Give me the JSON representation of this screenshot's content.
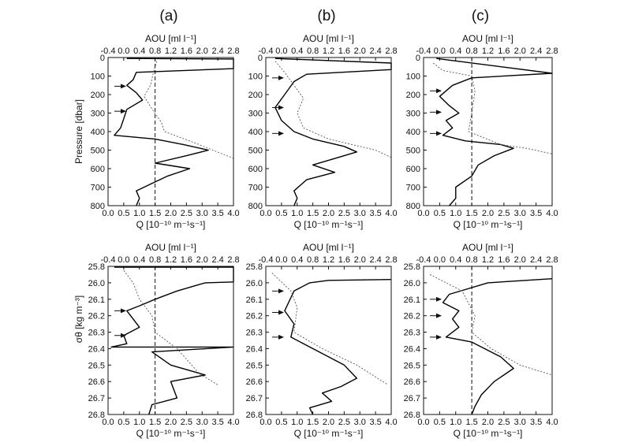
{
  "panel_labels": [
    "(a)",
    "(b)",
    "(c)"
  ],
  "axis_text": {
    "top_label": "AOU [ml l⁻¹]",
    "bottom_label": "Q [10⁻¹⁰ m⁻¹s⁻¹]",
    "y_label_top_row": "Pressure [dbar]",
    "y_label_bottom_row": "σθ [kg m⁻³]"
  },
  "chart_data": [
    {
      "type": "line",
      "panel": "(a)",
      "row": "pressure",
      "xlabel": "Q [10⁻¹⁰ m⁻¹s⁻¹]",
      "x2label": "AOU [ml l⁻¹]",
      "ylabel": "Pressure [dbar]",
      "xlim": [
        0,
        4
      ],
      "x2lim": [
        -0.4,
        2.8
      ],
      "ylim": [
        800,
        0
      ],
      "xticks": [
        "0.0",
        "0.5",
        "1.0",
        "1.5",
        "2.0",
        "2.5",
        "3.0",
        "3.5",
        "4.0"
      ],
      "x2ticks": [
        "-0.4",
        "0.0",
        "0.4",
        "0.8",
        "1.2",
        "1.6",
        "2.0",
        "2.4",
        "2.8"
      ],
      "yticks": [
        "0",
        "100",
        "200",
        "300",
        "400",
        "500",
        "600",
        "700",
        "800"
      ],
      "reference_line_Q": 1.5,
      "arrows_y": [
        155,
        290
      ],
      "series": [
        {
          "style": "solid",
          "points": [
            [
              0.6,
              5
            ],
            [
              4.0,
              8
            ],
            [
              4.0,
              60
            ],
            [
              0.9,
              80
            ],
            [
              0.8,
              120
            ],
            [
              0.6,
              150
            ],
            [
              0.9,
              190
            ],
            [
              1.1,
              230
            ],
            [
              0.6,
              280
            ],
            [
              0.5,
              330
            ],
            [
              0.4,
              380
            ],
            [
              0.2,
              420
            ],
            [
              1.5,
              440
            ],
            [
              2.4,
              470
            ],
            [
              3.2,
              500
            ],
            [
              2.5,
              530
            ],
            [
              1.5,
              570
            ],
            [
              2.6,
              600
            ],
            [
              1.9,
              640
            ],
            [
              1.4,
              680
            ],
            [
              0.9,
              720
            ],
            [
              1.0,
              760
            ],
            [
              0.9,
              800
            ]
          ]
        },
        {
          "style": "dotted",
          "points": [
            [
              1.55,
              20
            ],
            [
              1.45,
              80
            ],
            [
              1.35,
              150
            ],
            [
              1.15,
              210
            ],
            [
              1.45,
              290
            ],
            [
              1.7,
              350
            ],
            [
              1.8,
              400
            ],
            [
              2.9,
              470
            ],
            [
              4.0,
              545
            ]
          ]
        }
      ]
    },
    {
      "type": "line",
      "panel": "(b)",
      "row": "pressure",
      "xlabel": "Q [10⁻¹⁰ m⁻¹s⁻¹]",
      "x2label": "AOU [ml l⁻¹]",
      "ylabel": "",
      "xlim": [
        0,
        4
      ],
      "x2lim": [
        -0.4,
        2.8
      ],
      "ylim": [
        800,
        0
      ],
      "xticks": [
        "0.0",
        "0.5",
        "1.0",
        "1.5",
        "2.0",
        "2.5",
        "3.0",
        "3.5",
        "4.0"
      ],
      "x2ticks": [
        "-0.4",
        "0.0",
        "0.4",
        "0.8",
        "1.2",
        "1.6",
        "2.0",
        "2.4",
        "2.8"
      ],
      "yticks": [
        "0",
        "100",
        "200",
        "300",
        "400",
        "500",
        "600",
        "700",
        "800"
      ],
      "reference_line_Q": null,
      "arrows_y": [
        110,
        270,
        410
      ],
      "series": [
        {
          "style": "solid",
          "points": [
            [
              0.3,
              5
            ],
            [
              4.0,
              30
            ],
            [
              4.0,
              65
            ],
            [
              1.3,
              90
            ],
            [
              0.9,
              130
            ],
            [
              0.6,
              200
            ],
            [
              0.3,
              270
            ],
            [
              0.5,
              340
            ],
            [
              0.9,
              400
            ],
            [
              1.5,
              440
            ],
            [
              2.5,
              480
            ],
            [
              2.9,
              510
            ],
            [
              2.3,
              540
            ],
            [
              1.5,
              580
            ],
            [
              2.2,
              620
            ],
            [
              1.3,
              660
            ],
            [
              0.9,
              720
            ],
            [
              1.0,
              760
            ],
            [
              0.9,
              800
            ]
          ]
        },
        {
          "style": "dotted",
          "points": [
            [
              0.3,
              20
            ],
            [
              0.6,
              80
            ],
            [
              0.9,
              150
            ],
            [
              1.2,
              220
            ],
            [
              1.0,
              300
            ],
            [
              1.2,
              380
            ],
            [
              2.0,
              440
            ],
            [
              3.5,
              500
            ],
            [
              4.0,
              540
            ]
          ]
        }
      ]
    },
    {
      "type": "line",
      "panel": "(c)",
      "row": "pressure",
      "xlabel": "Q [10⁻¹⁰ m⁻¹s⁻¹]",
      "x2label": "AOU [ml l⁻¹]",
      "ylabel": "",
      "xlim": [
        0,
        4
      ],
      "x2lim": [
        -0.4,
        2.8
      ],
      "ylim": [
        800,
        0
      ],
      "xticks": [
        "0.0",
        "0.5",
        "1.0",
        "1.5",
        "2.0",
        "2.5",
        "3.0",
        "3.5",
        "4.0"
      ],
      "x2ticks": [
        "-0.4",
        "0.0",
        "0.4",
        "0.8",
        "1.2",
        "1.6",
        "2.0",
        "2.4",
        "2.8"
      ],
      "yticks": [
        "0",
        "100",
        "200",
        "300",
        "400",
        "500",
        "600",
        "700",
        "800"
      ],
      "reference_line_Q": 1.5,
      "arrows_y": [
        180,
        295,
        410
      ],
      "series": [
        {
          "style": "solid",
          "points": [
            [
              0.4,
              5
            ],
            [
              4.0,
              85
            ],
            [
              1.5,
              110
            ],
            [
              0.9,
              150
            ],
            [
              0.5,
              210
            ],
            [
              0.8,
              260
            ],
            [
              1.1,
              300
            ],
            [
              0.7,
              340
            ],
            [
              0.9,
              380
            ],
            [
              0.6,
              420
            ],
            [
              1.3,
              450
            ],
            [
              2.4,
              470
            ],
            [
              2.8,
              490
            ],
            [
              2.2,
              530
            ],
            [
              1.7,
              580
            ],
            [
              1.5,
              640
            ],
            [
              1.0,
              700
            ],
            [
              1.0,
              760
            ],
            [
              0.8,
              800
            ]
          ]
        },
        {
          "style": "dotted",
          "points": [
            [
              0.3,
              30
            ],
            [
              0.6,
              70
            ],
            [
              1.5,
              100
            ],
            [
              1.6,
              180
            ],
            [
              1.5,
              300
            ],
            [
              1.4,
              400
            ],
            [
              2.4,
              470
            ],
            [
              3.2,
              490
            ],
            [
              4.0,
              520
            ]
          ]
        }
      ]
    },
    {
      "type": "line",
      "panel": "(a)",
      "row": "density",
      "xlabel": "Q [10⁻¹⁰ m⁻¹s⁻¹]",
      "x2label": "AOU [ml l⁻¹]",
      "ylabel": "σθ [kg m⁻³]",
      "xlim": [
        0,
        4
      ],
      "x2lim": [
        -0.4,
        2.8
      ],
      "ylim": [
        26.8,
        25.8
      ],
      "xticks": [
        "0.0",
        "0.5",
        "1.0",
        "1.5",
        "2.0",
        "2.5",
        "3.0",
        "3.5",
        "4.0"
      ],
      "x2ticks": [
        "-0.4",
        "0.0",
        "0.4",
        "0.8",
        "1.2",
        "1.6",
        "2.0",
        "2.4",
        "2.8"
      ],
      "yticks": [
        "25.8",
        "26.0",
        "26.1",
        "26.2",
        "26.3",
        "26.4",
        "26.5",
        "26.6",
        "26.7",
        "26.8"
      ],
      "reference_line_Q": 1.5,
      "arrows_y": [
        26.17,
        26.32
      ],
      "series": [
        {
          "style": "solid",
          "points": [
            [
              0.2,
              25.81
            ],
            [
              4.0,
              25.81
            ],
            [
              4.0,
              25.99
            ],
            [
              3.1,
              26.0
            ],
            [
              2.2,
              26.05
            ],
            [
              1.5,
              26.1
            ],
            [
              1.0,
              26.14
            ],
            [
              0.6,
              26.17
            ],
            [
              0.8,
              26.22
            ],
            [
              1.0,
              26.27
            ],
            [
              0.5,
              26.32
            ],
            [
              0.6,
              26.37
            ],
            [
              0.1,
              26.39
            ],
            [
              4.0,
              26.39
            ],
            [
              1.4,
              26.42
            ],
            [
              2.0,
              26.5
            ],
            [
              3.1,
              26.56
            ],
            [
              2.0,
              26.6
            ],
            [
              2.2,
              26.7
            ],
            [
              1.4,
              26.74
            ],
            [
              1.3,
              26.8
            ]
          ]
        },
        {
          "style": "dotted",
          "points": [
            [
              0.5,
              25.85
            ],
            [
              0.8,
              26.0
            ],
            [
              1.0,
              26.1
            ],
            [
              1.4,
              26.2
            ],
            [
              1.5,
              26.3
            ],
            [
              2.2,
              26.4
            ],
            [
              2.9,
              26.55
            ],
            [
              3.5,
              26.62
            ]
          ]
        }
      ]
    },
    {
      "type": "line",
      "panel": "(b)",
      "row": "density",
      "xlabel": "Q [10⁻¹⁰ m⁻¹s⁻¹]",
      "x2label": "AOU [ml l⁻¹]",
      "ylabel": "",
      "xlim": [
        0,
        4
      ],
      "x2lim": [
        -0.4,
        2.8
      ],
      "ylim": [
        26.8,
        25.8
      ],
      "xticks": [
        "0.0",
        "0.5",
        "1.0",
        "1.5",
        "2.0",
        "2.5",
        "3.0",
        "3.5",
        "4.0"
      ],
      "x2ticks": [
        "-0.4",
        "0.0",
        "0.4",
        "0.8",
        "1.2",
        "1.6",
        "2.0",
        "2.4",
        "2.8"
      ],
      "yticks": [
        "25.8",
        "26.0",
        "26.1",
        "26.2",
        "26.3",
        "26.4",
        "26.5",
        "26.6",
        "26.7",
        "26.8"
      ],
      "reference_line_Q": null,
      "arrows_y": [
        26.05,
        26.18,
        26.33
      ],
      "series": [
        {
          "style": "solid",
          "points": [
            [
              4.0,
              25.96
            ],
            [
              2.0,
              25.97
            ],
            [
              1.4,
              26.0
            ],
            [
              0.9,
              26.05
            ],
            [
              0.6,
              26.17
            ],
            [
              0.9,
              26.25
            ],
            [
              0.8,
              26.33
            ],
            [
              1.5,
              26.4
            ],
            [
              2.5,
              26.5
            ],
            [
              2.9,
              26.58
            ],
            [
              2.4,
              26.63
            ],
            [
              1.8,
              26.67
            ],
            [
              2.1,
              26.72
            ],
            [
              1.4,
              26.76
            ],
            [
              1.5,
              26.8
            ]
          ]
        },
        {
          "style": "dotted",
          "points": [
            [
              0.2,
              25.88
            ],
            [
              0.8,
              26.05
            ],
            [
              1.0,
              26.15
            ],
            [
              0.9,
              26.3
            ],
            [
              1.8,
              26.4
            ],
            [
              2.9,
              26.5
            ],
            [
              3.9,
              26.62
            ]
          ]
        }
      ]
    },
    {
      "type": "line",
      "panel": "(c)",
      "row": "density",
      "xlabel": "Q [10⁻¹⁰ m⁻¹s⁻¹]",
      "x2label": "AOU [ml l⁻¹]",
      "ylabel": "",
      "xlim": [
        0,
        4
      ],
      "x2lim": [
        -0.4,
        2.8
      ],
      "ylim": [
        26.8,
        25.8
      ],
      "xticks": [
        "0.0",
        "0.5",
        "1.0",
        "1.5",
        "2.0",
        "2.5",
        "3.0",
        "3.5",
        "4.0"
      ],
      "x2ticks": [
        "-0.4",
        "0.0",
        "0.4",
        "0.8",
        "1.2",
        "1.6",
        "2.0",
        "2.4",
        "2.8"
      ],
      "yticks": [
        "25.8",
        "26.0",
        "26.1",
        "26.2",
        "26.3",
        "26.4",
        "26.5",
        "26.6",
        "26.7",
        "26.8"
      ],
      "reference_line_Q": 1.5,
      "arrows_y": [
        26.1,
        26.2,
        26.33
      ],
      "series": [
        {
          "style": "solid",
          "points": [
            [
              4.0,
              25.95
            ],
            [
              2.0,
              26.0
            ],
            [
              0.8,
              26.07
            ],
            [
              0.6,
              26.12
            ],
            [
              1.1,
              26.17
            ],
            [
              0.9,
              26.22
            ],
            [
              1.1,
              26.27
            ],
            [
              0.7,
              26.33
            ],
            [
              1.5,
              26.36
            ],
            [
              2.4,
              26.45
            ],
            [
              2.8,
              26.52
            ],
            [
              2.2,
              26.6
            ],
            [
              1.8,
              26.68
            ],
            [
              1.6,
              26.75
            ],
            [
              1.5,
              26.8
            ]
          ]
        },
        {
          "style": "dotted",
          "points": [
            [
              0.2,
              25.9
            ],
            [
              1.2,
              26.05
            ],
            [
              1.6,
              26.2
            ],
            [
              1.5,
              26.3
            ],
            [
              2.1,
              26.4
            ],
            [
              3.0,
              26.5
            ],
            [
              4.0,
              26.56
            ]
          ]
        }
      ]
    }
  ]
}
